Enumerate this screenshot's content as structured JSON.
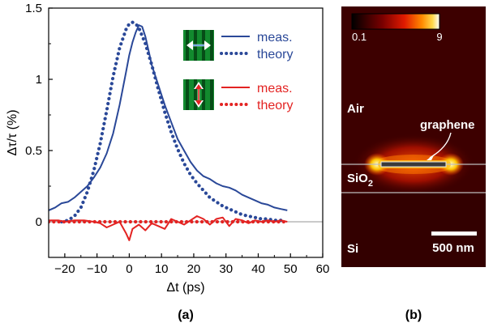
{
  "chart_data": {
    "type": "line",
    "panel_label": "(a)",
    "xlabel": "Δt (ps)",
    "ylabel": "Δτ/τ (%)",
    "xlim": [
      -25,
      60
    ],
    "ylim": [
      -0.25,
      1.5
    ],
    "x_ticks": [
      -20,
      -10,
      0,
      10,
      20,
      30,
      40,
      50,
      60
    ],
    "y_ticks": [
      0,
      0.5,
      1,
      1.5
    ],
    "y_tick_labels": [
      "0",
      "0.5",
      "1",
      "1.5"
    ],
    "zero_line": true,
    "legend_groups": [
      {
        "icon": "horizontal-arrow",
        "color": "#2a4898",
        "entries": [
          {
            "label": "meas.",
            "style": "solid"
          },
          {
            "label": "theory",
            "style": "dotted"
          }
        ]
      },
      {
        "icon": "vertical-arrow",
        "color": "#e32322",
        "entries": [
          {
            "label": "meas.",
            "style": "solid"
          },
          {
            "label": "theory",
            "style": "dotted"
          }
        ]
      }
    ],
    "series": [
      {
        "label": "meas.",
        "color": "#2a4898",
        "style": "solid",
        "x": [
          -25,
          -23,
          -21,
          -19,
          -17,
          -15,
          -13,
          -11,
          -9,
          -7,
          -5,
          -3,
          -1,
          0,
          1,
          2,
          3,
          4,
          5,
          6,
          7,
          9,
          11,
          13,
          15,
          17,
          19,
          21,
          23,
          25,
          27,
          29,
          31,
          33,
          35,
          37,
          39,
          41,
          43,
          45,
          47,
          49
        ],
        "y": [
          0.08,
          0.1,
          0.13,
          0.14,
          0.17,
          0.21,
          0.25,
          0.31,
          0.38,
          0.48,
          0.62,
          0.82,
          1.05,
          1.17,
          1.26,
          1.33,
          1.38,
          1.37,
          1.3,
          1.2,
          1.1,
          0.96,
          0.82,
          0.7,
          0.58,
          0.5,
          0.42,
          0.36,
          0.32,
          0.3,
          0.27,
          0.25,
          0.24,
          0.22,
          0.19,
          0.17,
          0.15,
          0.13,
          0.12,
          0.1,
          0.09,
          0.08
        ]
      },
      {
        "label": "theory",
        "color": "#2a4898",
        "style": "dotted",
        "x": [
          -21,
          -19,
          -17,
          -15,
          -13,
          -11,
          -9,
          -7,
          -5,
          -3,
          -1,
          0,
          1,
          2,
          3,
          5,
          7,
          9,
          11,
          13,
          15,
          17,
          19,
          21,
          23,
          25,
          27,
          29,
          31,
          33,
          35,
          37,
          39,
          41,
          43,
          45,
          47
        ],
        "y": [
          0.0,
          0.01,
          0.04,
          0.1,
          0.21,
          0.36,
          0.55,
          0.78,
          1.02,
          1.22,
          1.35,
          1.39,
          1.4,
          1.39,
          1.36,
          1.25,
          1.1,
          0.93,
          0.77,
          0.63,
          0.51,
          0.41,
          0.33,
          0.27,
          0.22,
          0.17,
          0.14,
          0.11,
          0.09,
          0.07,
          0.05,
          0.04,
          0.03,
          0.02,
          0.02,
          0.01,
          0.01
        ]
      },
      {
        "label": "meas.",
        "color": "#e32322",
        "style": "solid",
        "x": [
          -25,
          -22,
          -20,
          -17,
          -14,
          -11,
          -9,
          -7,
          -5,
          -3,
          -1,
          0,
          1,
          3,
          5,
          7,
          9,
          11,
          13,
          15,
          17,
          19,
          21,
          23,
          25,
          27,
          29,
          31,
          33,
          35,
          37,
          39,
          41,
          43,
          45,
          47,
          49
        ],
        "y": [
          0.01,
          0.01,
          0.0,
          0.01,
          0.01,
          0.0,
          -0.01,
          -0.04,
          -0.02,
          0.0,
          -0.08,
          -0.13,
          -0.05,
          -0.02,
          -0.06,
          -0.01,
          -0.03,
          -0.05,
          0.02,
          0.0,
          -0.02,
          0.01,
          0.04,
          0.02,
          -0.02,
          0.02,
          0.03,
          -0.03,
          0.02,
          0.01,
          -0.01,
          0.01,
          0.0,
          0.01,
          0.0,
          0.01,
          0.0
        ]
      },
      {
        "label": "theory",
        "color": "#e32322",
        "style": "dotted",
        "x": [
          -25,
          -20,
          -15,
          -10,
          -5,
          0,
          5,
          10,
          15,
          20,
          25,
          30,
          35,
          40,
          45,
          49
        ],
        "y": [
          0.0,
          0.0,
          0.0,
          0.0,
          0.0,
          0.0,
          0.0,
          0.0,
          0.0,
          0.0,
          0.0,
          0.0,
          0.0,
          0.0,
          0.0,
          0.0
        ]
      }
    ]
  },
  "field_map": {
    "panel_label": "(b)",
    "colorbar": {
      "min_label": "0.1",
      "max_label": "9"
    },
    "regions": {
      "air": "Air",
      "sio2": "SiO",
      "sio2_subscript": "2",
      "si": "Si"
    },
    "annotation": "graphene",
    "scale_bar": "500 nm",
    "colors": {
      "background": "#3a0000",
      "hot": "#ffd24a",
      "hottest": "#ffffcc",
      "interface_line": "#bdbdbd"
    }
  }
}
